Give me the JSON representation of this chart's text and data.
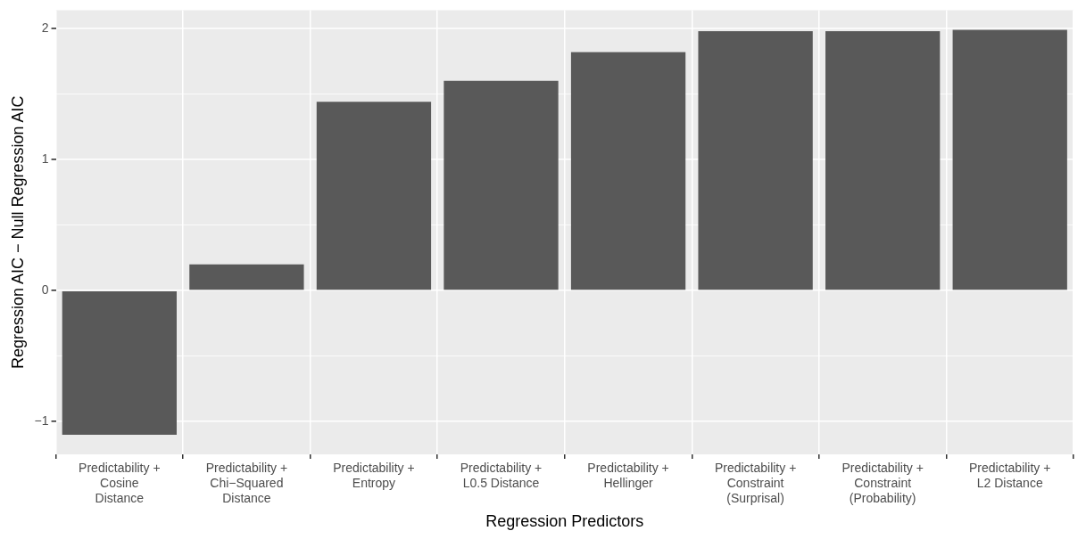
{
  "chart_data": {
    "type": "bar",
    "xlabel": "Regression Predictors",
    "ylabel": "Regression AIC − Null Regression AIC",
    "categories": [
      "Predictability +\nCosine\nDistance",
      "Predictability +\nChi−Squared\nDistance",
      "Predictability +\nEntropy",
      "Predictability +\nL0.5 Distance",
      "Predictability +\nHellinger",
      "Predictability +\nConstraint\n(Surprisal)",
      "Predictability +\nConstraint\n(Probability)",
      "Predictability +\nL2 Distance"
    ],
    "values": [
      -1.1,
      0.2,
      1.44,
      1.6,
      1.82,
      1.98,
      1.98,
      1.99
    ],
    "color": "#595959",
    "ylim": [
      -1.25,
      2.14
    ],
    "yticks": [
      {
        "value": -1,
        "label": "−1"
      },
      {
        "value": -0.5,
        "label": null
      },
      0,
      {
        "value": 0.5,
        "label": null
      },
      1,
      {
        "value": 1.5,
        "label": null
      },
      2
    ],
    "grid": true,
    "legend": false
  }
}
